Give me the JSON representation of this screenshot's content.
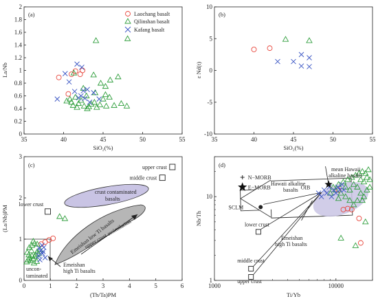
{
  "chart_data": [
    {
      "id": "a",
      "type": "scatter",
      "panel_label": "(a)",
      "xlabel": "SiO₂(%)",
      "ylabel": "La/Nb",
      "xlim": [
        35,
        55
      ],
      "ylim": [
        0,
        2
      ],
      "xticks": [
        "35",
        "40",
        "45",
        "50",
        "55"
      ],
      "yticks": [
        "0",
        "0.2",
        "0.4",
        "0.6",
        "0.8",
        "1",
        "1.2",
        "1.4",
        "1.6",
        "1.8",
        "2"
      ],
      "legend_position": "top-right",
      "series": [
        {
          "name": "Laochang basalt",
          "marker": "circle",
          "color": "#e8463c",
          "points": [
            [
              39.4,
              0.89
            ],
            [
              40.6,
              0.63
            ],
            [
              41.0,
              0.94
            ],
            [
              41.5,
              0.99
            ],
            [
              42.1,
              0.94
            ],
            [
              42.4,
              1.0
            ]
          ]
        },
        {
          "name": "Qilinshan basalt",
          "marker": "triangle",
          "color": "#2f9e3c",
          "points": [
            [
              40.4,
              0.52
            ],
            [
              40.8,
              0.55
            ],
            [
              41.0,
              0.5
            ],
            [
              41.2,
              0.45
            ],
            [
              41.5,
              0.58
            ],
            [
              41.9,
              0.48
            ],
            [
              42.2,
              0.53
            ],
            [
              42.6,
              0.44
            ],
            [
              42.9,
              0.6
            ],
            [
              43.2,
              0.43
            ],
            [
              43.5,
              0.47
            ],
            [
              43.9,
              0.5
            ],
            [
              44.2,
              0.42
            ],
            [
              44.6,
              0.46
            ],
            [
              45.0,
              0.55
            ],
            [
              45.4,
              0.44
            ],
            [
              45.8,
              0.58
            ],
            [
              46.4,
              0.45
            ],
            [
              46.9,
              0.9
            ],
            [
              47.3,
              0.48
            ],
            [
              48.0,
              0.44
            ],
            [
              43.8,
              0.93
            ],
            [
              44.7,
              0.8
            ],
            [
              45.3,
              0.75
            ],
            [
              45.9,
              0.85
            ],
            [
              44.1,
              1.47
            ],
            [
              48.1,
              1.5
            ],
            [
              41.3,
              0.96
            ],
            [
              42.5,
              0.72
            ],
            [
              44.0,
              0.65
            ],
            [
              45.3,
              0.62
            ],
            [
              43.0,
              0.4
            ],
            [
              41.7,
              0.42
            ]
          ]
        },
        {
          "name": "Kafang basalt",
          "marker": "x",
          "color": "#3b56c4",
          "points": [
            [
              39.2,
              0.55
            ],
            [
              40.2,
              0.95
            ],
            [
              40.7,
              0.82
            ],
            [
              41.4,
              0.67
            ],
            [
              41.9,
              0.57
            ],
            [
              42.2,
              0.6
            ],
            [
              42.5,
              0.68
            ],
            [
              42.7,
              0.56
            ],
            [
              43.0,
              0.7
            ],
            [
              43.3,
              0.5
            ],
            [
              41.7,
              1.1
            ],
            [
              42.3,
              1.05
            ],
            [
              43.8,
              0.65
            ],
            [
              44.5,
              0.55
            ]
          ]
        }
      ]
    },
    {
      "id": "b",
      "type": "scatter",
      "panel_label": "(b)",
      "xlabel": "SiO₂(%)",
      "ylabel": "ε Nd(t)",
      "xlim": [
        35,
        55
      ],
      "ylim": [
        -10,
        10
      ],
      "xticks": [
        "35",
        "40",
        "45",
        "50",
        "55"
      ],
      "yticks": [
        "-10",
        "-5",
        "0",
        "5",
        "10"
      ],
      "series": [
        {
          "marker": "circle",
          "color": "#e8463c",
          "points": [
            [
              40.0,
              3.3
            ],
            [
              42.0,
              3.5
            ]
          ]
        },
        {
          "marker": "triangle",
          "color": "#2f9e3c",
          "points": [
            [
              44.0,
              4.9
            ],
            [
              47.0,
              4.7
            ]
          ]
        },
        {
          "marker": "x",
          "color": "#3b56c4",
          "points": [
            [
              43.0,
              1.4
            ],
            [
              45.0,
              1.4
            ],
            [
              46.0,
              2.5
            ],
            [
              47.0,
              2.0
            ],
            [
              46.0,
              0.7
            ],
            [
              47.0,
              0.6
            ]
          ]
        }
      ]
    },
    {
      "id": "c",
      "type": "scatter",
      "panel_label": "(c)",
      "xlabel": "(Th/Ta)PM",
      "ylabel": "(La/Nb)PM",
      "xlim": [
        0,
        6
      ],
      "ylim": [
        0,
        3
      ],
      "xticks": [
        "0",
        "1",
        "2",
        "3",
        "4",
        "5",
        "6"
      ],
      "yticks": [
        "0",
        "1",
        "2",
        "3"
      ],
      "references": [
        {
          "label": "upper crust",
          "x": 5.63,
          "y": 2.75
        },
        {
          "label": "middle crust",
          "x": 5.25,
          "y": 2.49
        },
        {
          "label": "lower crust",
          "x": 0.9,
          "y": 1.67
        }
      ],
      "annotations": [
        "crust contaminated basalts",
        "Emeishan low Ti basalts",
        "upper crust assimilation",
        "Emeishan high Ti basalts",
        "uncontaminated"
      ],
      "series": [
        {
          "marker": "circle",
          "color": "#e8463c",
          "points": [
            [
              0.95,
              0.98
            ],
            [
              0.8,
              0.93
            ],
            [
              1.1,
              1.02
            ],
            [
              0.65,
              0.88
            ]
          ]
        },
        {
          "marker": "triangle",
          "color": "#2f9e3c",
          "points": [
            [
              0.1,
              0.45
            ],
            [
              0.15,
              0.5
            ],
            [
              0.2,
              0.55
            ],
            [
              0.25,
              0.48
            ],
            [
              0.3,
              0.6
            ],
            [
              0.35,
              0.52
            ],
            [
              0.4,
              0.58
            ],
            [
              0.45,
              0.62
            ],
            [
              0.5,
              0.7
            ],
            [
              0.55,
              0.65
            ],
            [
              0.6,
              0.75
            ],
            [
              0.2,
              0.8
            ],
            [
              0.3,
              0.85
            ],
            [
              0.4,
              0.9
            ],
            [
              0.5,
              0.88
            ],
            [
              0.12,
              0.68
            ],
            [
              0.18,
              0.62
            ],
            [
              0.28,
              0.72
            ],
            [
              0.38,
              0.42
            ],
            [
              0.48,
              0.46
            ],
            [
              0.35,
              0.95
            ],
            [
              1.35,
              1.55
            ],
            [
              1.55,
              1.5
            ]
          ]
        },
        {
          "marker": "x",
          "color": "#3b56c4",
          "points": [
            [
              0.55,
              0.6
            ],
            [
              0.62,
              0.72
            ],
            [
              0.7,
              0.65
            ],
            [
              0.75,
              0.8
            ],
            [
              0.8,
              0.55
            ],
            [
              0.6,
              0.5
            ],
            [
              0.68,
              0.85
            ],
            [
              0.72,
              0.7
            ],
            [
              0.58,
              0.78
            ]
          ]
        }
      ]
    },
    {
      "id": "d",
      "type": "scatter",
      "panel_label": "(d)",
      "xlabel": "Ti/Yb",
      "ylabel": "Nb/Th",
      "x_scale": "log",
      "y_scale": "log",
      "xlim": [
        1000,
        20000
      ],
      "ylim": [
        1,
        30
      ],
      "xticks": [
        "1000",
        "10000"
      ],
      "yticks": [
        "1",
        "10"
      ],
      "references": [
        {
          "label": "N−MORB",
          "x": 1700,
          "y": 17
        },
        {
          "label": "E−MORB",
          "x": 1700,
          "y": 13
        },
        {
          "label": "SCLM",
          "x": 2400,
          "y": 7.5
        },
        {
          "label": "lower crust",
          "x": 2300,
          "y": 3.8
        },
        {
          "label": "middle crust",
          "x": 2000,
          "y": 1.38
        },
        {
          "label": "upper crust",
          "x": 2000,
          "y": 1.1
        },
        {
          "label": "OIB",
          "x": 7000,
          "y": 11.5
        },
        {
          "label": "mean Hawaii alkaline basalts",
          "x": 8700,
          "y": 14
        }
      ],
      "annotations": [
        "Hawaii alkaline basalts",
        "Emeishan high Ti basalts"
      ],
      "series": [
        {
          "marker": "circle",
          "color": "#e8463c",
          "points": [
            [
              11500,
              7.0
            ],
            [
              12500,
              7.2
            ],
            [
              15500,
              5.5
            ],
            [
              16000,
              2.8
            ],
            [
              10500,
              12.0
            ],
            [
              13500,
              7.0
            ]
          ]
        },
        {
          "marker": "triangle",
          "color": "#2f9e3c",
          "points": [
            [
              9000,
              11
            ],
            [
              9500,
              13
            ],
            [
              10000,
              12
            ],
            [
              10500,
              14
            ],
            [
              11000,
              11
            ],
            [
              11500,
              15
            ],
            [
              12000,
              13
            ],
            [
              12500,
              16
            ],
            [
              13000,
              12
            ],
            [
              13500,
              17
            ],
            [
              14000,
              14
            ],
            [
              14500,
              18
            ],
            [
              15000,
              13
            ],
            [
              15500,
              19
            ],
            [
              16000,
              16
            ],
            [
              16500,
              20
            ],
            [
              17000,
              15
            ],
            [
              17500,
              19
            ],
            [
              18000,
              17
            ],
            [
              18500,
              21
            ],
            [
              19000,
              16
            ],
            [
              12000,
              10
            ],
            [
              13000,
              9
            ],
            [
              14000,
              8
            ],
            [
              15000,
              9
            ],
            [
              16000,
              11
            ],
            [
              17000,
              10
            ],
            [
              18000,
              12
            ],
            [
              19000,
              13
            ],
            [
              11000,
              3.2
            ],
            [
              14500,
              2.6
            ],
            [
              17500,
              5.0
            ],
            [
              16500,
              9.0
            ],
            [
              10500,
              9.5
            ]
          ]
        },
        {
          "marker": "x",
          "color": "#3b56c4",
          "points": [
            [
              7200,
              11
            ],
            [
              7600,
              10
            ],
            [
              8000,
              12
            ],
            [
              8400,
              11
            ],
            [
              8800,
              13
            ],
            [
              9200,
              10
            ],
            [
              9600,
              12
            ],
            [
              10000,
              11
            ],
            [
              10400,
              13
            ],
            [
              10800,
              12
            ],
            [
              11200,
              14
            ],
            [
              11600,
              12
            ]
          ]
        }
      ]
    }
  ]
}
